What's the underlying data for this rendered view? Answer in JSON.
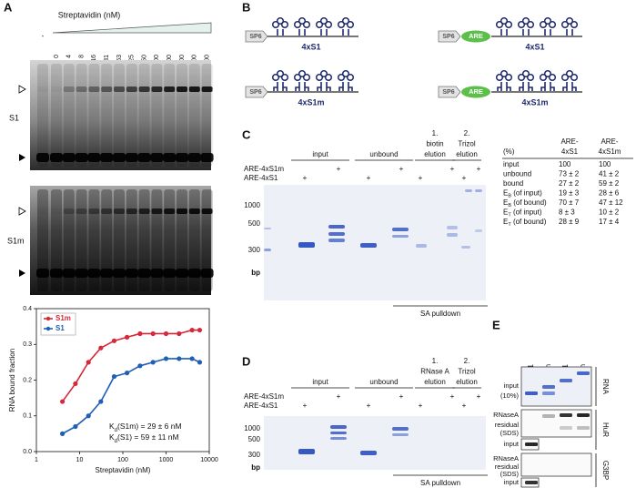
{
  "panel_labels": [
    "A",
    "B",
    "C",
    "D",
    "E"
  ],
  "panel_a": {
    "gel_title": "Streptavidin (nM)",
    "lanes": [
      "-",
      "0",
      "4",
      "8",
      "16",
      "31",
      "63",
      "125",
      "250",
      "500",
      "1000",
      "2000",
      "4000",
      "6000"
    ],
    "gels": [
      "S1",
      "S1m"
    ]
  },
  "chart_data": {
    "type": "line",
    "x": [
      4,
      8,
      16,
      31,
      63,
      125,
      250,
      500,
      1000,
      2000,
      4000,
      6000
    ],
    "series": [
      {
        "name": "S1m",
        "color": "#d62839",
        "values": [
          0.14,
          0.19,
          0.25,
          0.29,
          0.31,
          0.32,
          0.33,
          0.33,
          0.33,
          0.33,
          0.34,
          0.34
        ]
      },
      {
        "name": "S1",
        "color": "#1f5fb4",
        "values": [
          0.05,
          0.07,
          0.1,
          0.14,
          0.21,
          0.22,
          0.24,
          0.25,
          0.26,
          0.26,
          0.26,
          0.25
        ]
      }
    ],
    "xlim": [
      1,
      10000
    ],
    "xticks": [
      1,
      10,
      100,
      1000,
      10000
    ],
    "log_x": true,
    "ylim": [
      0,
      0.4
    ],
    "yticks": [
      {
        "value": 0,
        "label": "0.0"
      },
      0.1,
      0.2,
      0.3,
      0.4
    ],
    "x_label": "Streptavidin (nM)",
    "y_label": "RNA bound fraction",
    "legend": "upper left",
    "annotations": [
      [
        "K",
        "d",
        "(S1m) = 29 ± 6 nM"
      ],
      [
        "K",
        "d",
        "(S1) = 59 ± 11 nM"
      ]
    ]
  },
  "panel_b": {
    "constructs": [
      {
        "promoter": "SP6",
        "label": "4xS1"
      },
      {
        "promoter": "SP6",
        "element": "ARE",
        "label": "4xS1"
      },
      {
        "promoter": "SP6",
        "label": "4xS1m"
      },
      {
        "promoter": "SP6",
        "element": "ARE",
        "label": "4xS1m"
      }
    ]
  },
  "panel_c": {
    "columns": [
      [
        "input"
      ],
      [
        "unbound"
      ],
      [
        "1.",
        "biotin",
        "elution"
      ],
      [
        "2.",
        "Trizol",
        "elution"
      ]
    ],
    "rows": [
      "ARE-4xS1m",
      "ARE-4xS1"
    ],
    "plus": "+",
    "sizes": [
      "1000",
      "500",
      "300"
    ],
    "unit": "bp",
    "pulldown": "SA pulldown",
    "table": {
      "corner": "(%)",
      "headers": [
        [
          "ARE-",
          "4xS1"
        ],
        [
          "ARE-",
          "4xS1m"
        ]
      ],
      "rows": [
        {
          "label": [
            "input"
          ],
          "cells": [
            "100",
            "100"
          ]
        },
        {
          "label": [
            "unbound"
          ],
          "cells": [
            "73 ± 2",
            "41 ± 2"
          ]
        },
        {
          "label": [
            "bound"
          ],
          "cells": [
            "27 ± 2",
            "59 ± 2"
          ]
        },
        {
          "label": [
            "E",
            "B",
            " (of input)"
          ],
          "cells": [
            "19 ± 3",
            "28 ± 6"
          ]
        },
        {
          "label": [
            "E",
            "B",
            " (of bound)"
          ],
          "cells": [
            "70 ± 7",
            "47 ± 12"
          ]
        },
        {
          "label": [
            "E",
            "T",
            " (of input)"
          ],
          "cells": [
            "8 ± 3",
            "10 ± 2"
          ]
        },
        {
          "label": [
            "E",
            "T",
            " (of bound)"
          ],
          "cells": [
            "28 ± 9",
            "17 ± 4"
          ]
        }
      ]
    }
  },
  "panel_d": {
    "columns": [
      [
        "input"
      ],
      [
        "unbound"
      ],
      [
        "1.",
        "RNase A",
        "elution"
      ],
      [
        "2.",
        "Trizol",
        "elution"
      ]
    ],
    "rows": [
      "ARE-4xS1m",
      "ARE-4xS1"
    ],
    "plus": "+",
    "sizes": [
      "1000",
      "500",
      "300"
    ],
    "unit": "bp",
    "pulldown": "SA pulldown"
  },
  "panel_e": {
    "lanes": [
      "4xS1",
      "4xS1m",
      "ARE-4xS1",
      "ARE-4xS1m"
    ],
    "blocks": [
      {
        "side": "RNA",
        "rows": [
          [
            "input",
            "(10%)"
          ]
        ]
      },
      {
        "side": "HuR",
        "rows": [
          [
            "RNaseA"
          ],
          [
            "residual",
            "(SDS)"
          ],
          [
            "input"
          ]
        ]
      },
      {
        "side": "G3BP",
        "rows": [
          [
            "RNaseA"
          ],
          [
            "residual",
            "(SDS)"
          ],
          [
            "input"
          ]
        ]
      }
    ]
  }
}
